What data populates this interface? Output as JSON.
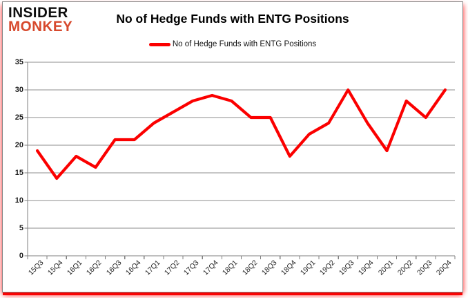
{
  "logo": {
    "line1": "INSIDER",
    "line2": "MONKEY",
    "color_top": "#0d0d0d",
    "color_bottom": "#d7492d"
  },
  "header": {
    "title": "No of Hedge Funds with ENTG Positions"
  },
  "legend": {
    "label": "No of Hedge Funds with ENTG Positions",
    "swatch_color": "#fb0000"
  },
  "chart_data": {
    "type": "line",
    "title": "No of Hedge Funds with ENTG Positions",
    "categories": [
      "15Q3",
      "15Q4",
      "16Q1",
      "16Q2",
      "16Q3",
      "16Q4",
      "17Q1",
      "17Q2",
      "17Q3",
      "17Q4",
      "18Q1",
      "18Q2",
      "18Q3",
      "18Q4",
      "19Q1",
      "19Q2",
      "19Q3",
      "19Q4",
      "20Q1",
      "20Q2",
      "20Q3",
      "20Q4"
    ],
    "series": [
      {
        "name": "No of Hedge Funds with ENTG Positions",
        "values": [
          19,
          14,
          18,
          16,
          21,
          21,
          24,
          26,
          28,
          29,
          28,
          25,
          25,
          18,
          22,
          24,
          30,
          24,
          19,
          28,
          25,
          30
        ]
      }
    ],
    "xlabel": "",
    "ylabel": "",
    "ylim": [
      0,
      35
    ],
    "yticks": [
      0,
      5,
      10,
      15,
      20,
      25,
      30,
      35
    ],
    "grid": true,
    "legend_position": "top",
    "line_color": "#fb0000",
    "gridline_color": "#8c8c8c",
    "axis_color": "#7f7f7f",
    "tick_label_color": "#262626"
  }
}
